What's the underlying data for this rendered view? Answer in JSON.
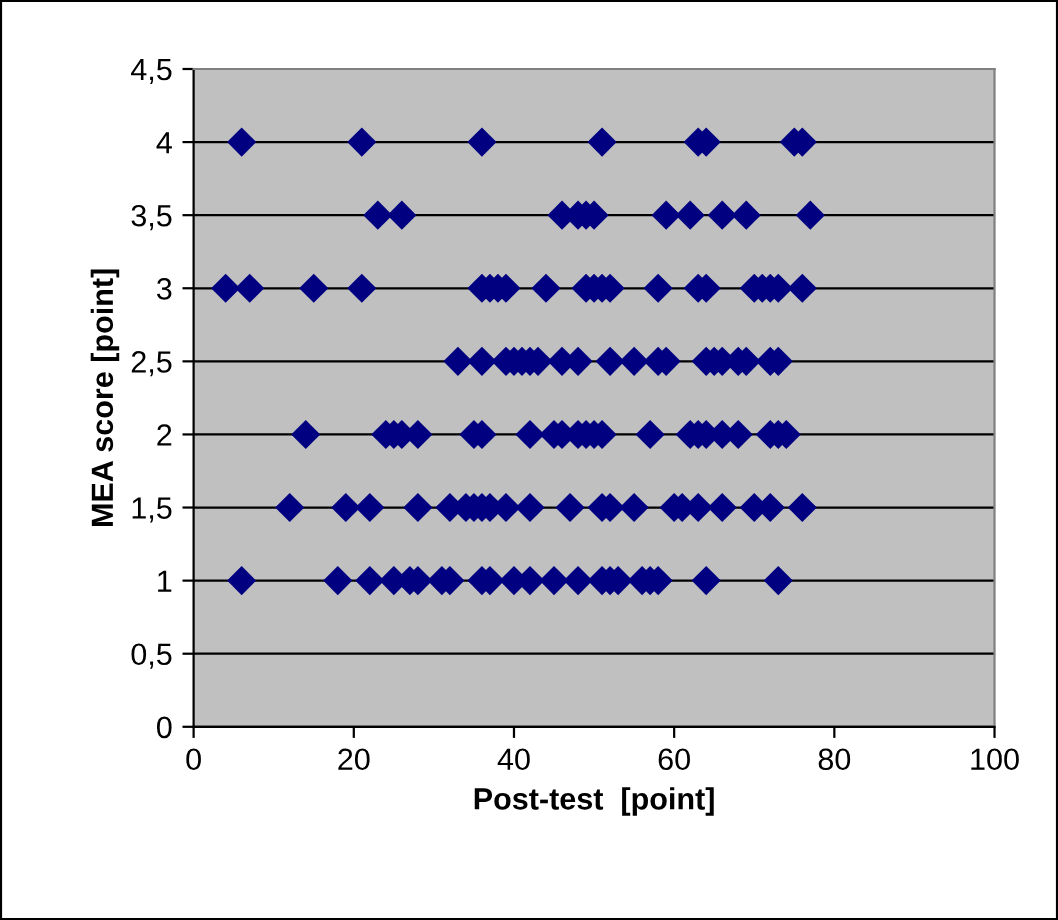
{
  "chart_data": {
    "type": "scatter",
    "xlabel": "Post-test  [point]",
    "ylabel": "MEA score [point]",
    "x": [
      6,
      21,
      36,
      51,
      63,
      64,
      75,
      76,
      23,
      26,
      46,
      48,
      49,
      50,
      59,
      62,
      66,
      69,
      77,
      4,
      7,
      15,
      21,
      36,
      37,
      38,
      39,
      44,
      49,
      50,
      51,
      52,
      58,
      63,
      64,
      70,
      71,
      72,
      73,
      76,
      33,
      36,
      39,
      40,
      41,
      42,
      43,
      46,
      48,
      52,
      55,
      58,
      59,
      64,
      65,
      66,
      68,
      69,
      72,
      73,
      14,
      24,
      25,
      26,
      28,
      35,
      36,
      42,
      45,
      46,
      48,
      49,
      50,
      51,
      57,
      62,
      63,
      64,
      66,
      68,
      72,
      73,
      74,
      12,
      19,
      22,
      28,
      32,
      34,
      35,
      36,
      37,
      39,
      42,
      47,
      51,
      52,
      55,
      60,
      61,
      63,
      66,
      70,
      72,
      76,
      6,
      18,
      22,
      25,
      27,
      28,
      31,
      32,
      36,
      37,
      40,
      42,
      45,
      48,
      51,
      52,
      53,
      56,
      57,
      58,
      64,
      73
    ],
    "values": [
      4,
      4,
      4,
      4,
      4,
      4,
      4,
      4,
      3.5,
      3.5,
      3.5,
      3.5,
      3.5,
      3.5,
      3.5,
      3.5,
      3.5,
      3.5,
      3.5,
      3,
      3,
      3,
      3,
      3,
      3,
      3,
      3,
      3,
      3,
      3,
      3,
      3,
      3,
      3,
      3,
      3,
      3,
      3,
      3,
      3,
      2.5,
      2.5,
      2.5,
      2.5,
      2.5,
      2.5,
      2.5,
      2.5,
      2.5,
      2.5,
      2.5,
      2.5,
      2.5,
      2.5,
      2.5,
      2.5,
      2.5,
      2.5,
      2.5,
      2.5,
      2,
      2,
      2,
      2,
      2,
      2,
      2,
      2,
      2,
      2,
      2,
      2,
      2,
      2,
      2,
      2,
      2,
      2,
      2,
      2,
      2,
      2,
      2,
      1.5,
      1.5,
      1.5,
      1.5,
      1.5,
      1.5,
      1.5,
      1.5,
      1.5,
      1.5,
      1.5,
      1.5,
      1.5,
      1.5,
      1.5,
      1.5,
      1.5,
      1.5,
      1.5,
      1.5,
      1.5,
      1.5,
      1,
      1,
      1,
      1,
      1,
      1,
      1,
      1,
      1,
      1,
      1,
      1,
      1,
      1,
      1,
      1,
      1,
      1,
      1,
      1,
      1,
      1
    ],
    "color": "#000080",
    "marker": "diamond",
    "xlim": [
      0,
      100
    ],
    "xticks": [
      0,
      20,
      40,
      60,
      80,
      100
    ],
    "ylim": [
      0,
      4.5
    ],
    "yticks": [
      0,
      {
        "value": 0.5,
        "label": "0,5"
      },
      1,
      {
        "value": 1.5,
        "label": "1,5"
      },
      2,
      {
        "value": 2.5,
        "label": "2,5"
      },
      3,
      {
        "value": 3.5,
        "label": "3,5"
      },
      4,
      {
        "value": 4.5,
        "label": "4,5"
      }
    ],
    "grid": "y",
    "legend": false
  }
}
